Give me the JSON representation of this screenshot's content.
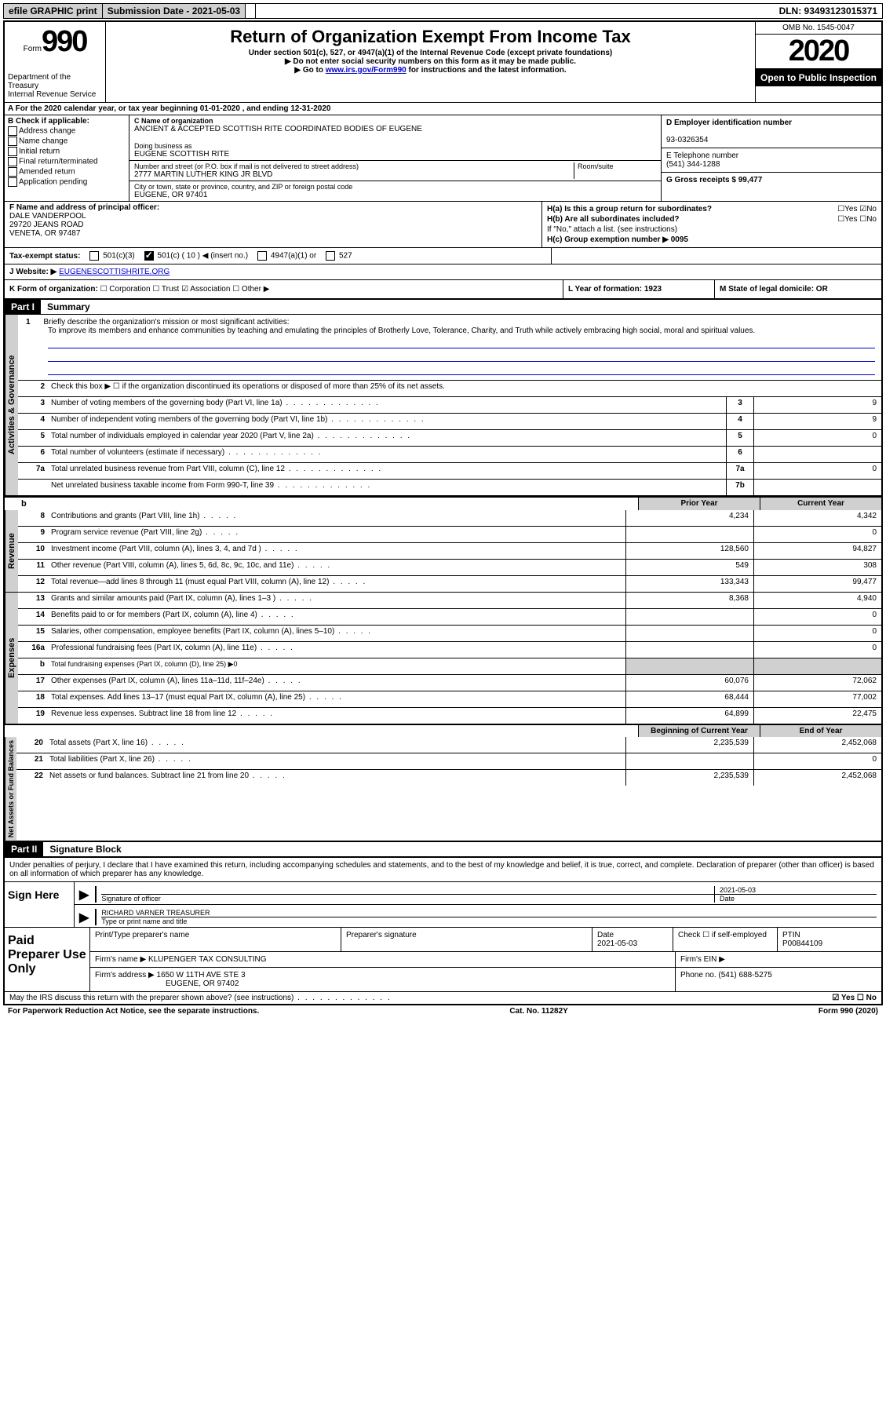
{
  "topbar": {
    "efile": "efile GRAPHIC print",
    "submission": "Submission Date - 2021-05-03",
    "dln": "DLN: 93493123015371"
  },
  "header": {
    "form_prefix": "Form",
    "form_num": "990",
    "dept": "Department of the Treasury\nInternal Revenue Service",
    "title": "Return of Organization Exempt From Income Tax",
    "sub1": "Under section 501(c), 527, or 4947(a)(1) of the Internal Revenue Code (except private foundations)",
    "sub2": "▶ Do not enter social security numbers on this form as it may be made public.",
    "sub3_pre": "▶ Go to ",
    "sub3_link": "www.irs.gov/Form990",
    "sub3_post": " for instructions and the latest information.",
    "omb": "OMB No. 1545-0047",
    "year": "2020",
    "open": "Open to Public Inspection"
  },
  "rowA": "A For the 2020 calendar year, or tax year beginning 01-01-2020    , and ending 12-31-2020",
  "sectionB": {
    "label": "B Check if applicable:",
    "opts": [
      "Address change",
      "Name change",
      "Initial return",
      "Final return/terminated",
      "Amended return",
      "Application pending"
    ]
  },
  "nameBlock": {
    "c_label": "C Name of organization",
    "c_val": "ANCIENT & ACCEPTED SCOTTISH RITE COORDINATED BODIES OF EUGENE",
    "dba_label": "Doing business as",
    "dba_val": "EUGENE SCOTTISH RITE",
    "addr_label": "Number and street (or P.O. box if mail is not delivered to street address)",
    "room_label": "Room/suite",
    "addr_val": "2777 MARTIN LUTHER KING JR BLVD",
    "city_label": "City or town, state or province, country, and ZIP or foreign postal code",
    "city_val": "EUGENE, OR  97401"
  },
  "rightCol": {
    "d_label": "D Employer identification number",
    "d_val": "93-0326354",
    "e_label": "E Telephone number",
    "e_val": "(541) 344-1288",
    "g_label": "G Gross receipts $ 99,477"
  },
  "f": {
    "label": "F  Name and address of principal officer:",
    "name": "DALE VANDERPOOL",
    "addr1": "29720 JEANS ROAD",
    "addr2": "VENETA, OR  97487"
  },
  "h": {
    "ha": "H(a)  Is this a group return for subordinates?",
    "ha_ans": "☐Yes ☑No",
    "hb": "H(b)  Are all subordinates included?",
    "hb_ans": "☐Yes ☐No",
    "hb_note": "If \"No,\" attach a list. (see instructions)",
    "hc": "H(c)  Group exemption number ▶   0095"
  },
  "taxStatus": {
    "label": "Tax-exempt status:",
    "opt1": "501(c)(3)",
    "opt2": "501(c) ( 10 ) ◀ (insert no.)",
    "opt3": "4947(a)(1) or",
    "opt4": "527"
  },
  "website": {
    "label": "J Website: ▶",
    "val": "EUGENESCOTTISHRITE.ORG"
  },
  "k": {
    "label": "K Form of organization:",
    "opts": "☐ Corporation  ☐ Trust  ☑ Association  ☐ Other ▶"
  },
  "l": "L Year of formation: 1923",
  "m": "M State of legal domicile: OR",
  "part1": {
    "header": "Part I",
    "title": "Summary"
  },
  "mission": {
    "num": "1",
    "label": "Briefly describe the organization's mission or most significant activities:",
    "text": "To improve its members and enhance communities by teaching and emulating the principles of Brotherly Love, Tolerance, Charity, and Truth while actively embracing high social, moral and spiritual values."
  },
  "lines_gov": [
    {
      "n": "2",
      "d": "Check this box ▶ ☐  if the organization discontinued its operations or disposed of more than 25% of its net assets."
    },
    {
      "n": "3",
      "d": "Number of voting members of the governing body (Part VI, line 1a)",
      "box": "3",
      "v": "9"
    },
    {
      "n": "4",
      "d": "Number of independent voting members of the governing body (Part VI, line 1b)",
      "box": "4",
      "v": "9"
    },
    {
      "n": "5",
      "d": "Total number of individuals employed in calendar year 2020 (Part V, line 2a)",
      "box": "5",
      "v": "0"
    },
    {
      "n": "6",
      "d": "Total number of volunteers (estimate if necessary)",
      "box": "6",
      "v": ""
    },
    {
      "n": "7a",
      "d": "Total unrelated business revenue from Part VIII, column (C), line 12",
      "box": "7a",
      "v": "0"
    },
    {
      "n": "",
      "d": "Net unrelated business taxable income from Form 990-T, line 39",
      "box": "7b",
      "v": ""
    }
  ],
  "col_headers": {
    "b": "b",
    "prior": "Prior Year",
    "current": "Current Year"
  },
  "lines_rev": [
    {
      "n": "8",
      "d": "Contributions and grants (Part VIII, line 1h)",
      "p": "4,234",
      "c": "4,342"
    },
    {
      "n": "9",
      "d": "Program service revenue (Part VIII, line 2g)",
      "p": "",
      "c": "0"
    },
    {
      "n": "10",
      "d": "Investment income (Part VIII, column (A), lines 3, 4, and 7d )",
      "p": "128,560",
      "c": "94,827"
    },
    {
      "n": "11",
      "d": "Other revenue (Part VIII, column (A), lines 5, 6d, 8c, 9c, 10c, and 11e)",
      "p": "549",
      "c": "308"
    },
    {
      "n": "12",
      "d": "Total revenue—add lines 8 through 11 (must equal Part VIII, column (A), line 12)",
      "p": "133,343",
      "c": "99,477"
    }
  ],
  "lines_exp": [
    {
      "n": "13",
      "d": "Grants and similar amounts paid (Part IX, column (A), lines 1–3 )",
      "p": "8,368",
      "c": "4,940"
    },
    {
      "n": "14",
      "d": "Benefits paid to or for members (Part IX, column (A), line 4)",
      "p": "",
      "c": "0"
    },
    {
      "n": "15",
      "d": "Salaries, other compensation, employee benefits (Part IX, column (A), lines 5–10)",
      "p": "",
      "c": "0"
    },
    {
      "n": "16a",
      "d": "Professional fundraising fees (Part IX, column (A), line 11e)",
      "p": "",
      "c": "0"
    },
    {
      "n": "b",
      "d": "Total fundraising expenses (Part IX, column (D), line 25) ▶0",
      "shade": true
    },
    {
      "n": "17",
      "d": "Other expenses (Part IX, column (A), lines 11a–11d, 11f–24e)",
      "p": "60,076",
      "c": "72,062"
    },
    {
      "n": "18",
      "d": "Total expenses. Add lines 13–17 (must equal Part IX, column (A), line 25)",
      "p": "68,444",
      "c": "77,002"
    },
    {
      "n": "19",
      "d": "Revenue less expenses. Subtract line 18 from line 12",
      "p": "64,899",
      "c": "22,475"
    }
  ],
  "col_headers2": {
    "begin": "Beginning of Current Year",
    "end": "End of Year"
  },
  "lines_net": [
    {
      "n": "20",
      "d": "Total assets (Part X, line 16)",
      "p": "2,235,539",
      "c": "2,452,068"
    },
    {
      "n": "21",
      "d": "Total liabilities (Part X, line 26)",
      "p": "",
      "c": "0"
    },
    {
      "n": "22",
      "d": "Net assets or fund balances. Subtract line 21 from line 20",
      "p": "2,235,539",
      "c": "2,452,068"
    }
  ],
  "vtabs": {
    "gov": "Activities & Governance",
    "rev": "Revenue",
    "exp": "Expenses",
    "net": "Net Assets or Fund Balances"
  },
  "part2": {
    "header": "Part II",
    "title": "Signature Block"
  },
  "sig_text": "Under penalties of perjury, I declare that I have examined this return, including accompanying schedules and statements, and to the best of my knowledge and belief, it is true, correct, and complete. Declaration of preparer (other than officer) is based on all information of which preparer has any knowledge.",
  "sign": {
    "label": "Sign Here",
    "sig_officer": "Signature of officer",
    "date_label": "Date",
    "date_val": "2021-05-03",
    "name": "RICHARD VARNER  TREASURER",
    "name_label": "Type or print name and title"
  },
  "prep": {
    "label": "Paid Preparer Use Only",
    "h1": "Print/Type preparer's name",
    "h2": "Preparer's signature",
    "h3": "Date",
    "date": "2021-05-03",
    "h4": "Check ☐  if self-employed",
    "h5": "PTIN",
    "ptin": "P00844109",
    "firm_label": "Firm's name    ▶",
    "firm": "KLUPENGER TAX CONSULTING",
    "ein_label": "Firm's EIN ▶",
    "addr_label": "Firm's address ▶",
    "addr1": "1650 W 11TH AVE STE 3",
    "addr2": "EUGENE, OR  97402",
    "phone_label": "Phone no.",
    "phone": "(541) 688-5275"
  },
  "discuss": {
    "q": "May the IRS discuss this return with the preparer shown above? (see instructions)",
    "ans": "☑ Yes  ☐ No"
  },
  "footer": {
    "left": "For Paperwork Reduction Act Notice, see the separate instructions.",
    "mid": "Cat. No. 11282Y",
    "right": "Form 990 (2020)"
  }
}
